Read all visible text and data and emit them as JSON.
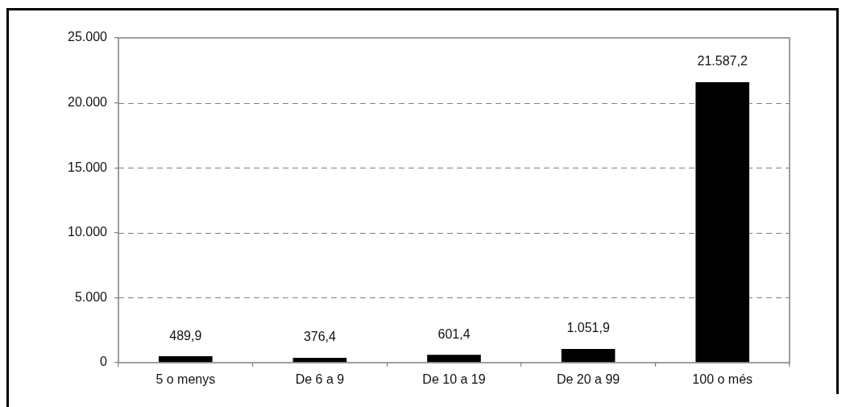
{
  "chart_data": {
    "type": "bar",
    "categories": [
      "5 o menys",
      "De 6 a 9",
      "De 10 a 19",
      "De 20 a 99",
      "100 o més"
    ],
    "values": [
      489.9,
      376.4,
      601.4,
      1051.9,
      21587.2
    ],
    "value_labels": [
      "489,9",
      "376,4",
      "601,4",
      "1.051,9",
      "21.587,2"
    ],
    "color": "#000000",
    "ylim": [
      0,
      25000
    ],
    "yticks": [
      0,
      {
        "value": 5000,
        "label": "5.000"
      },
      {
        "value": 10000,
        "label": "10.000"
      },
      {
        "value": 15000,
        "label": "15.000"
      },
      {
        "value": 20000,
        "label": "20.000"
      },
      {
        "value": 25000,
        "label": "25.000"
      }
    ],
    "grid": "y"
  }
}
